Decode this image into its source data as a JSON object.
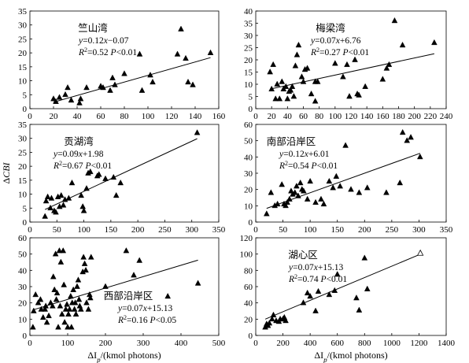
{
  "figure": {
    "ylabel": "ΔCBI",
    "xlabel": "ΔIp/(kmol photons)",
    "ylabel_parts": {
      "main": "Δ",
      "italic": "CBI"
    },
    "xlabel_parts": {
      "main": "ΔI",
      "sub": "p",
      "unit": "/(kmol photons)"
    }
  },
  "chart_data": [
    {
      "type": "scatter",
      "title": "竺山湾",
      "equation": "y=0.12x−0.07",
      "stats": "R²=0.52 P<0.01",
      "fit": {
        "slope": 0.12,
        "intercept": -0.07
      },
      "xlim": [
        0,
        160
      ],
      "ylim": [
        0,
        35
      ],
      "xticks": [
        0,
        20,
        40,
        60,
        80,
        100,
        120,
        140,
        160
      ],
      "yticks": [
        0,
        5,
        10,
        15,
        20,
        25,
        30,
        35
      ],
      "grid": false,
      "series": [
        {
          "marker": "filled-triangle",
          "points": [
            [
              20,
              3.5
            ],
            [
              22,
              2.5
            ],
            [
              25,
              4
            ],
            [
              30,
              5
            ],
            [
              32,
              7.5
            ],
            [
              35,
              3
            ],
            [
              42,
              2
            ],
            [
              43,
              3.5
            ],
            [
              48,
              7.5
            ],
            [
              60,
              8
            ],
            [
              62,
              7.5
            ],
            [
              68,
              6.5
            ],
            [
              70,
              11
            ],
            [
              72,
              8.5
            ],
            [
              80,
              12.5
            ],
            [
              93,
              19.5
            ],
            [
              95,
              6.5
            ],
            [
              102,
              12
            ],
            [
              104,
              9.5
            ],
            [
              125,
              19.5
            ],
            [
              128,
              28.5
            ],
            [
              132,
              18
            ],
            [
              134,
              9.5
            ],
            [
              138,
              8.5
            ],
            [
              153,
              20
            ]
          ]
        }
      ]
    },
    {
      "type": "scatter",
      "title": "梅梁湾",
      "equation": "y=0.07x+6.76",
      "stats": "R²=0.27 P<0.01",
      "fit": {
        "slope": 0.07,
        "intercept": 6.76
      },
      "xlim": [
        0,
        240
      ],
      "ylim": [
        0,
        40
      ],
      "xticks": [
        0,
        20,
        40,
        60,
        80,
        100,
        120,
        140,
        160,
        180,
        200,
        220,
        240
      ],
      "yticks": [
        0,
        5,
        10,
        15,
        20,
        25,
        30,
        35,
        40
      ],
      "grid": false,
      "series": [
        {
          "marker": "filled-triangle",
          "points": [
            [
              18,
              15
            ],
            [
              20,
              8
            ],
            [
              22,
              18
            ],
            [
              25,
              4
            ],
            [
              27,
              10
            ],
            [
              30,
              4
            ],
            [
              33,
              11
            ],
            [
              35,
              8
            ],
            [
              38,
              9
            ],
            [
              40,
              4
            ],
            [
              42,
              7
            ],
            [
              44,
              7.5
            ],
            [
              46,
              9
            ],
            [
              48,
              5
            ],
            [
              50,
              17.5
            ],
            [
              52,
              22
            ],
            [
              54,
              26
            ],
            [
              58,
              13
            ],
            [
              60,
              11
            ],
            [
              62,
              16
            ],
            [
              65,
              16.5
            ],
            [
              70,
              6
            ],
            [
              75,
              3
            ],
            [
              78,
              11
            ],
            [
              100,
              18.5
            ],
            [
              110,
              13
            ],
            [
              115,
              18
            ],
            [
              118,
              5
            ],
            [
              125,
              20
            ],
            [
              128,
              6
            ],
            [
              130,
              5.5
            ],
            [
              138,
              9
            ],
            [
              160,
              12
            ],
            [
              165,
              16.5
            ],
            [
              168,
              18
            ],
            [
              175,
              36
            ],
            [
              185,
              26
            ],
            [
              225,
              27
            ],
            [
              75,
              11
            ]
          ]
        }
      ]
    },
    {
      "type": "scatter",
      "title": "贡湖湾",
      "equation": "y=0.09x+1.98",
      "stats": "R²=0.67 P<0.01",
      "fit": {
        "slope": 0.09,
        "intercept": 1.98
      },
      "xlim": [
        0,
        350
      ],
      "ylim": [
        0,
        35
      ],
      "xticks": [
        0,
        50,
        100,
        150,
        200,
        250,
        300,
        350
      ],
      "yticks": [
        0,
        5,
        10,
        15,
        20,
        25,
        30,
        35
      ],
      "grid": false,
      "series": [
        {
          "marker": "filled-triangle",
          "points": [
            [
              28,
              2
            ],
            [
              30,
              7.5
            ],
            [
              33,
              9
            ],
            [
              38,
              5
            ],
            [
              40,
              8.5
            ],
            [
              45,
              4
            ],
            [
              48,
              3.5
            ],
            [
              52,
              9
            ],
            [
              55,
              5.5
            ],
            [
              58,
              9.5
            ],
            [
              62,
              6
            ],
            [
              65,
              8
            ],
            [
              72,
              8.5
            ],
            [
              78,
              14
            ],
            [
              95,
              9.5
            ],
            [
              98,
              5.5
            ],
            [
              100,
              4
            ],
            [
              105,
              12
            ],
            [
              108,
              17.5
            ],
            [
              112,
              18
            ],
            [
              125,
              16.5
            ],
            [
              128,
              17
            ],
            [
              140,
              15.5
            ],
            [
              155,
              16
            ],
            [
              160,
              9.5
            ],
            [
              168,
              14
            ],
            [
              310,
              32
            ]
          ]
        }
      ]
    },
    {
      "type": "scatter",
      "title": "南部沿岸区",
      "equation": "y=0.12x+6.01",
      "stats": "R²=0.54 P<0.01",
      "fit": {
        "slope": 0.12,
        "intercept": 6.01
      },
      "xlim": [
        0,
        350
      ],
      "ylim": [
        0,
        60
      ],
      "xticks": [
        0,
        50,
        100,
        150,
        200,
        250,
        300,
        350
      ],
      "yticks": [
        0,
        10,
        20,
        30,
        40,
        50,
        60
      ],
      "grid": false,
      "series": [
        {
          "marker": "filled-triangle",
          "points": [
            [
              20,
              5
            ],
            [
              28,
              18
            ],
            [
              35,
              10
            ],
            [
              40,
              11
            ],
            [
              48,
              23
            ],
            [
              52,
              11
            ],
            [
              55,
              10
            ],
            [
              58,
              12
            ],
            [
              62,
              14
            ],
            [
              65,
              19
            ],
            [
              68,
              17
            ],
            [
              72,
              18
            ],
            [
              75,
              22
            ],
            [
              78,
              16
            ],
            [
              82,
              24
            ],
            [
              85,
              20
            ],
            [
              88,
              19
            ],
            [
              95,
              14
            ],
            [
              100,
              25
            ],
            [
              110,
              12
            ],
            [
              120,
              14
            ],
            [
              125,
              11
            ],
            [
              135,
              25
            ],
            [
              142,
              21
            ],
            [
              148,
              28
            ],
            [
              155,
              22
            ],
            [
              165,
              47
            ],
            [
              175,
              20
            ],
            [
              190,
              18
            ],
            [
              205,
              21
            ],
            [
              240,
              18
            ],
            [
              265,
              24
            ],
            [
              270,
              55
            ],
            [
              278,
              50
            ],
            [
              285,
              52
            ],
            [
              302,
              40
            ]
          ]
        }
      ]
    },
    {
      "type": "scatter",
      "title": "西部沿岸区",
      "equation": "y=0.07x+15.13",
      "stats": "R²=0.16 P<0.05",
      "fit": {
        "slope": 0.07,
        "intercept": 15.13
      },
      "xlim": [
        0,
        500
      ],
      "ylim": [
        0,
        60
      ],
      "xticks": [
        0,
        100,
        200,
        300,
        400,
        500
      ],
      "yticks": [
        0,
        10,
        20,
        30,
        40,
        50,
        60
      ],
      "grid": false,
      "series": [
        {
          "marker": "filled-triangle",
          "points": [
            [
              8,
              5
            ],
            [
              10,
              15
            ],
            [
              15,
              25
            ],
            [
              22,
              20
            ],
            [
              28,
              22
            ],
            [
              30,
              16
            ],
            [
              35,
              11
            ],
            [
              40,
              16
            ],
            [
              42,
              18
            ],
            [
              45,
              8
            ],
            [
              50,
              12
            ],
            [
              55,
              20
            ],
            [
              60,
              18
            ],
            [
              62,
              36
            ],
            [
              65,
              28
            ],
            [
              68,
              50
            ],
            [
              70,
              22
            ],
            [
              72,
              26
            ],
            [
              75,
              5
            ],
            [
              78,
              52
            ],
            [
              80,
              18
            ],
            [
              82,
              45
            ],
            [
              85,
              13
            ],
            [
              88,
              52
            ],
            [
              90,
              31
            ],
            [
              92,
              8
            ],
            [
              95,
              16
            ],
            [
              98,
              19
            ],
            [
              100,
              5
            ],
            [
              102,
              13
            ],
            [
              105,
              16
            ],
            [
              108,
              24
            ],
            [
              110,
              5
            ],
            [
              112,
              20
            ],
            [
              115,
              28
            ],
            [
              118,
              16
            ],
            [
              120,
              20
            ],
            [
              122,
              13
            ],
            [
              125,
              30
            ],
            [
              128,
              34
            ],
            [
              130,
              22
            ],
            [
              132,
              18
            ],
            [
              135,
              16
            ],
            [
              140,
              39
            ],
            [
              142,
              48
            ],
            [
              145,
              44
            ],
            [
              148,
              40
            ],
            [
              150,
              20
            ],
            [
              155,
              16
            ],
            [
              158,
              25
            ],
            [
              160,
              23
            ],
            [
              162,
              48
            ],
            [
              200,
              30
            ],
            [
              255,
              52
            ],
            [
              275,
              37
            ],
            [
              290,
              46
            ],
            [
              365,
              24
            ],
            [
              445,
              32
            ]
          ]
        }
      ]
    },
    {
      "type": "scatter",
      "title": "湖心区",
      "equation": "y=0.07x+15.13",
      "stats": "R²=0.74 P<0.01",
      "fit": {
        "slope": 0.07,
        "intercept": 15.13
      },
      "xlim": [
        0,
        1400
      ],
      "ylim": [
        0,
        120
      ],
      "xticks": [
        0,
        200,
        400,
        600,
        800,
        1000,
        1200,
        1400
      ],
      "yticks": [
        0,
        20,
        40,
        60,
        80,
        100,
        120
      ],
      "grid": false,
      "series": [
        {
          "marker": "filled-triangle",
          "points": [
            [
              70,
              10
            ],
            [
              80,
              14
            ],
            [
              90,
              12
            ],
            [
              100,
              15
            ],
            [
              120,
              20
            ],
            [
              130,
              25
            ],
            [
              150,
              18
            ],
            [
              170,
              17
            ],
            [
              180,
              20
            ],
            [
              200,
              20
            ],
            [
              210,
              22
            ],
            [
              220,
              18
            ],
            [
              350,
              40
            ],
            [
              380,
              52
            ],
            [
              400,
              48
            ],
            [
              440,
              30
            ],
            [
              460,
              54
            ],
            [
              540,
              50
            ],
            [
              580,
              55
            ],
            [
              600,
              75
            ],
            [
              740,
              46
            ],
            [
              760,
              31
            ],
            [
              800,
              95
            ],
            [
              820,
              57
            ]
          ]
        },
        {
          "marker": "open-triangle",
          "points": [
            [
              1210,
              101
            ]
          ]
        }
      ]
    }
  ]
}
